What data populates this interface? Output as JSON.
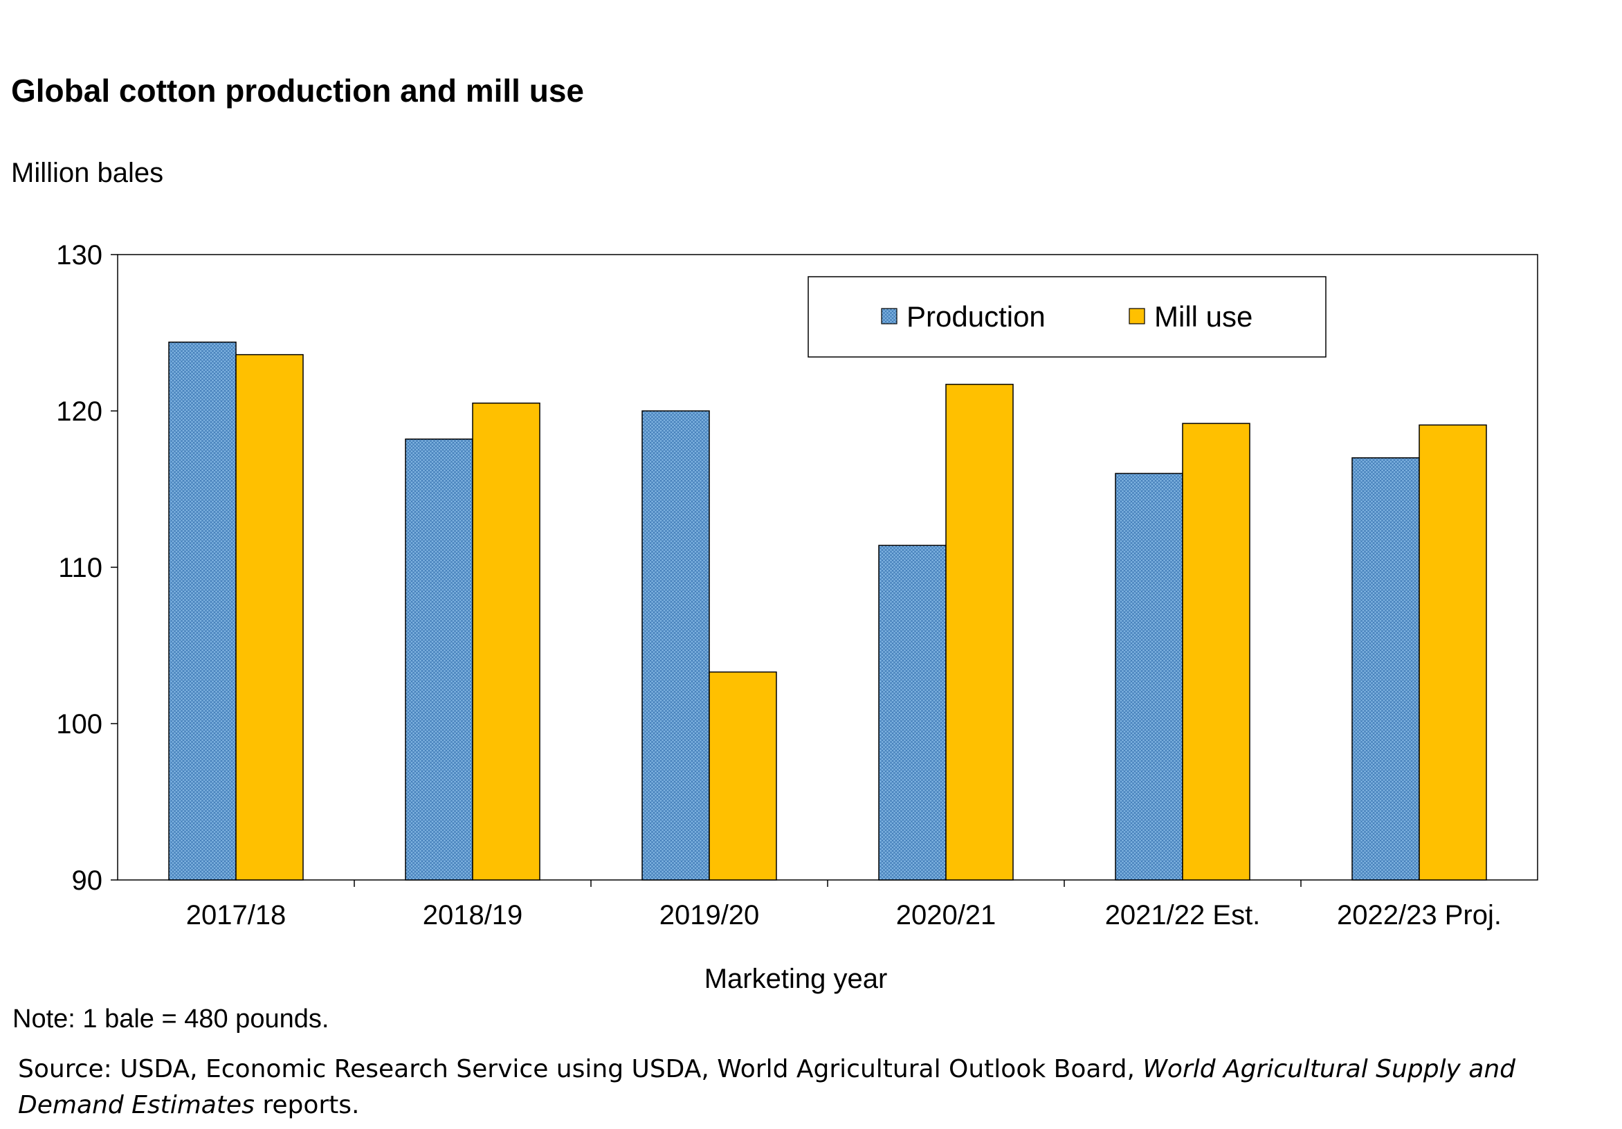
{
  "chart_data": {
    "type": "bar",
    "title": "Global cotton production and mill use",
    "ylabel": "Million bales",
    "xlabel": "Marketing year",
    "ylim": [
      90,
      130
    ],
    "yticks": [
      90,
      100,
      110,
      120,
      130
    ],
    "categories": [
      "2017/18",
      "2018/19",
      "2019/20",
      "2020/21",
      "2021/22 Est.",
      "2022/23 Proj."
    ],
    "series": [
      {
        "name": "Production",
        "values": [
          124.4,
          118.2,
          120.0,
          111.4,
          116.0,
          117.0
        ],
        "color": "#6fa8dc",
        "pattern": "crosshatch"
      },
      {
        "name": "Mill use",
        "values": [
          123.6,
          120.5,
          103.3,
          121.7,
          119.2,
          119.1
        ],
        "color": "#ffc000"
      }
    ],
    "legend_position": "top-right"
  },
  "footer": {
    "note": "Note: 1 bale = 480 pounds.",
    "source_prefix": "Source: USDA, Economic Research Service using USDA, World Agricultural Outlook Board, ",
    "source_italic": "World Agricultural Supply and Demand Estimates",
    "source_suffix": " reports."
  }
}
